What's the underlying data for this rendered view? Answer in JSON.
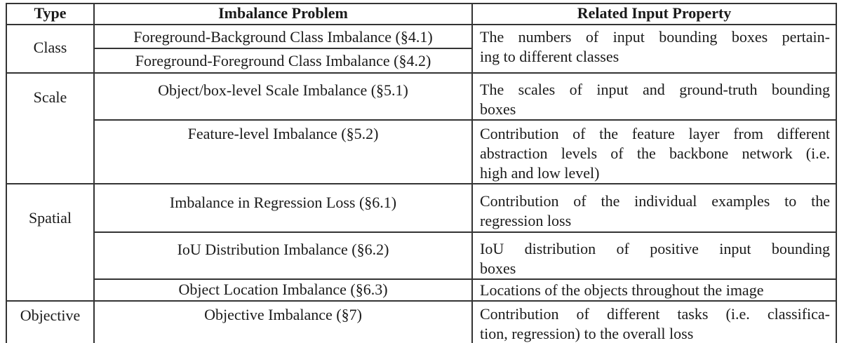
{
  "table": {
    "headers": [
      "Type",
      "Imbalance Problem",
      "Related Input Property"
    ],
    "groups": [
      {
        "type": "Class",
        "problems": [
          "Foreground-Background Class Imbalance (§4.1)",
          "Foreground-Foreground Class Imbalance (§4.2)"
        ],
        "properties": [
          {
            "lines": [
              "The numbers of input bounding boxes pertain-",
              "ing to different classes"
            ]
          }
        ]
      },
      {
        "type": "Scale",
        "problems": [
          "Object/box-level Scale Imbalance (§5.1)",
          "Feature-level Imbalance (§5.2)"
        ],
        "properties": [
          {
            "lines": [
              "The scales of input and ground-truth bounding",
              "boxes"
            ]
          },
          {
            "lines": [
              "Contribution of the feature layer from different",
              "abstraction levels of the backbone network (i.e.",
              "high and low level)"
            ]
          }
        ]
      },
      {
        "type": "Spatial",
        "problems": [
          "Imbalance in Regression Loss (§6.1)",
          "IoU Distribution Imbalance (§6.2)",
          "Object Location Imbalance (§6.3)"
        ],
        "properties": [
          {
            "lines": [
              "Contribution of the individual examples to the",
              "regression loss"
            ]
          },
          {
            "lines": [
              "IoU distribution of positive input bounding",
              "boxes"
            ]
          },
          {
            "lines": [
              "Locations of the objects throughout the image"
            ]
          }
        ]
      },
      {
        "type": "Objective",
        "problems": [
          "Objective Imbalance (§7)"
        ],
        "properties": [
          {
            "lines": [
              "Contribution of different tasks (i.e. classifica-",
              "tion, regression) to the overall loss"
            ]
          }
        ]
      }
    ]
  }
}
